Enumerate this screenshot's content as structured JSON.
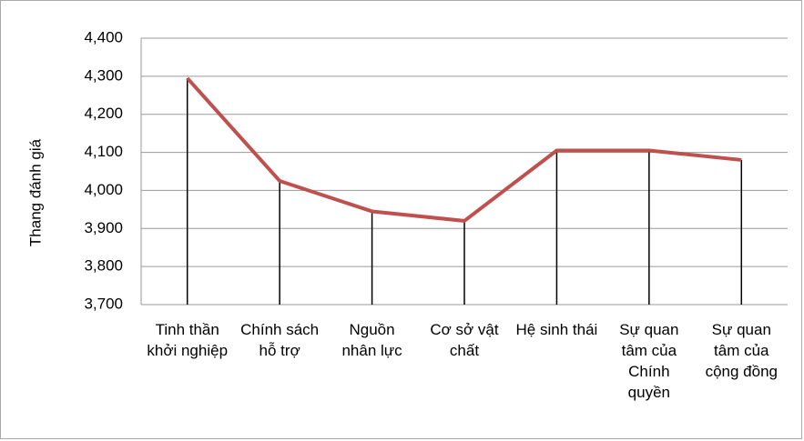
{
  "chart_data": {
    "type": "line",
    "y_label": "Thang đánh giá",
    "categories": [
      "Tinh thần khởi nghiệp",
      "Chính sách hỗ trợ",
      "Nguồn nhân lực",
      "Cơ sở vật chất",
      "Hệ sinh thái",
      "Sự quan tâm của Chính quyền",
      "Sự quan tâm của cộng đồng"
    ],
    "series": [
      {
        "name": "Thang đánh giá",
        "color": "#c0504d",
        "values": [
          4.295,
          4.025,
          3.945,
          3.92,
          4.105,
          4.105,
          4.08
        ]
      }
    ],
    "ylim": [
      3.7,
      4.4
    ],
    "yticks": [
      {
        "value": 3.7,
        "label": "3,700"
      },
      {
        "value": 3.8,
        "label": "3,800"
      },
      {
        "value": 3.9,
        "label": "3,900"
      },
      {
        "value": 4.0,
        "label": "4,000"
      },
      {
        "value": 4.1,
        "label": "4,100"
      },
      {
        "value": 4.2,
        "label": "4,200"
      },
      {
        "value": 4.3,
        "label": "4,300"
      },
      {
        "value": 4.4,
        "label": "4,400"
      }
    ],
    "grid": true,
    "drop_lines": true
  }
}
